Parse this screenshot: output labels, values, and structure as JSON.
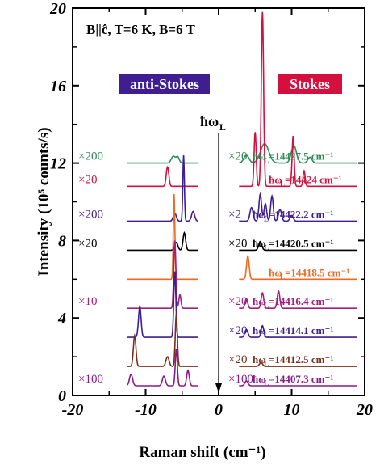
{
  "chart_data": {
    "type": "line",
    "title": "B||ĉ, T=6 K, B=6 T",
    "xlabel": "Raman shift (cm⁻¹)",
    "ylabel": "Intensity (10⁵ counts/s)",
    "xlim": [
      -20,
      20
    ],
    "ylim": [
      0,
      20
    ],
    "xticks": [
      -20,
      -10,
      0,
      10,
      20
    ],
    "xtick_labels": [
      "-20",
      "-10",
      "0",
      "10",
      "20"
    ],
    "yticks": [
      0,
      4,
      8,
      12,
      16,
      20
    ],
    "ytick_labels": [
      "0",
      "4",
      "8",
      "12",
      "16",
      "20"
    ],
    "region_labels": [
      {
        "text": "anti-Stokes",
        "bg": "#3f1f8f"
      },
      {
        "text": "Stokes",
        "bg": "#d4103f"
      }
    ],
    "laser_label": "ħω",
    "laser_label_sub": "L",
    "series": [
      {
        "color": "#2e8b57",
        "baseline": 12.0,
        "as_mult": "×200",
        "s_mult": "×20",
        "energy": "ħω",
        "energy_sub": "L",
        "energy_rest": "=14427.5 cm⁻¹",
        "as_peaks": [
          [
            -6.2,
            0.35,
            0.4
          ],
          [
            -5.6,
            0.3,
            0.3
          ]
        ],
        "s_peaks": [
          [
            3.8,
            0.4,
            0.5
          ],
          [
            6.3,
            1.0,
            0.8
          ],
          [
            10.3,
            0.9,
            0.5
          ],
          [
            12.5,
            0.3,
            0.4
          ]
        ]
      },
      {
        "color": "#d4103f",
        "baseline": 10.8,
        "as_mult": "×20",
        "s_mult": "",
        "energy": "ħω",
        "energy_sub": "L",
        "energy_rest": "=14424 cm⁻¹",
        "as_peaks": [
          [
            -7.0,
            1.0,
            0.25
          ]
        ],
        "s_peaks": [
          [
            5.0,
            2.8,
            0.2
          ],
          [
            6.0,
            9.0,
            0.22
          ],
          [
            10.2,
            2.6,
            0.2
          ],
          [
            11.7,
            0.8,
            0.2
          ]
        ]
      },
      {
        "color": "#3f1f8f",
        "baseline": 9.0,
        "as_mult": "×200",
        "s_mult": "×2",
        "energy": "ħω",
        "energy_sub": "L",
        "energy_rest": "=14422.2 cm⁻¹",
        "as_peaks": [
          [
            -6.0,
            0.4,
            0.3
          ],
          [
            -4.8,
            3.4,
            0.15
          ],
          [
            -3.5,
            0.5,
            0.3
          ]
        ],
        "s_peaks": [
          [
            4.5,
            0.7,
            0.3
          ],
          [
            5.7,
            1.4,
            0.25
          ],
          [
            6.4,
            0.9,
            0.25
          ],
          [
            7.3,
            1.3,
            0.25
          ],
          [
            8.4,
            0.6,
            0.3
          ],
          [
            10.0,
            0.3,
            0.3
          ]
        ]
      },
      {
        "color": "#000000",
        "baseline": 7.5,
        "as_mult": "×20",
        "s_mult": "×20",
        "energy": "ħω",
        "energy_sub": "L",
        "energy_rest": "=14420.5 cm⁻¹",
        "as_peaks": [
          [
            -5.8,
            0.4,
            0.3
          ],
          [
            -4.7,
            0.9,
            0.25
          ]
        ],
        "s_peaks": [
          [
            5.7,
            0.45,
            0.3
          ]
        ]
      },
      {
        "color": "#ee6a22",
        "baseline": 6.0,
        "as_mult": "",
        "s_mult": "",
        "energy": "ħω",
        "energy_sub": "L",
        "energy_rest": "=14418.5 cm⁻¹",
        "as_peaks": [
          [
            -6.1,
            4.4,
            0.15
          ]
        ],
        "s_peaks": [
          [
            4.0,
            1.2,
            0.25
          ]
        ]
      },
      {
        "color": "#a0207f",
        "baseline": 4.5,
        "as_mult": "×10",
        "s_mult": "×20",
        "energy": "ħω",
        "energy_sub": "L",
        "energy_rest": "=14416.4 cm⁻¹",
        "as_peaks": [
          [
            -6.0,
            3.5,
            0.2
          ],
          [
            -5.3,
            0.7,
            0.2
          ]
        ],
        "s_peaks": [
          [
            3.8,
            0.5,
            0.25
          ],
          [
            6.0,
            0.8,
            0.25
          ],
          [
            8.2,
            0.9,
            0.25
          ]
        ]
      },
      {
        "color": "#3f1f8f",
        "baseline": 3.0,
        "as_mult": "",
        "s_mult": "×20",
        "energy": "ħω",
        "energy_sub": "L",
        "energy_rest": "=14414.1 cm⁻¹",
        "as_peaks": [
          [
            -10.8,
            1.6,
            0.25
          ],
          [
            -6.0,
            3.4,
            0.2
          ]
        ],
        "s_peaks": [
          [
            3.8,
            0.4,
            0.3
          ],
          [
            6.0,
            0.6,
            0.25
          ]
        ]
      },
      {
        "color": "#7a2f1a",
        "baseline": 1.5,
        "as_mult": "",
        "s_mult": "×20",
        "energy": "ħω",
        "energy_sub": "L",
        "energy_rest": "=14412.5 cm⁻¹",
        "as_peaks": [
          [
            -11.5,
            1.6,
            0.25
          ],
          [
            -7.0,
            0.5,
            0.3
          ],
          [
            -5.8,
            2.7,
            0.2
          ]
        ],
        "s_peaks": [
          [
            5.8,
            0.2,
            0.3
          ]
        ]
      },
      {
        "color": "#8b1a8b",
        "baseline": 0.5,
        "as_mult": "×100",
        "s_mult": "×100",
        "energy": "ħω",
        "energy_sub": "L",
        "energy_rest": "=14407.3 cm⁻¹",
        "as_peaks": [
          [
            -12.0,
            0.6,
            0.3
          ],
          [
            -7.5,
            0.5,
            0.3
          ],
          [
            -5.8,
            1.9,
            0.2
          ],
          [
            -4.2,
            0.8,
            0.25
          ]
        ],
        "s_peaks": [
          [
            3.8,
            0.25,
            0.3
          ]
        ]
      }
    ]
  }
}
